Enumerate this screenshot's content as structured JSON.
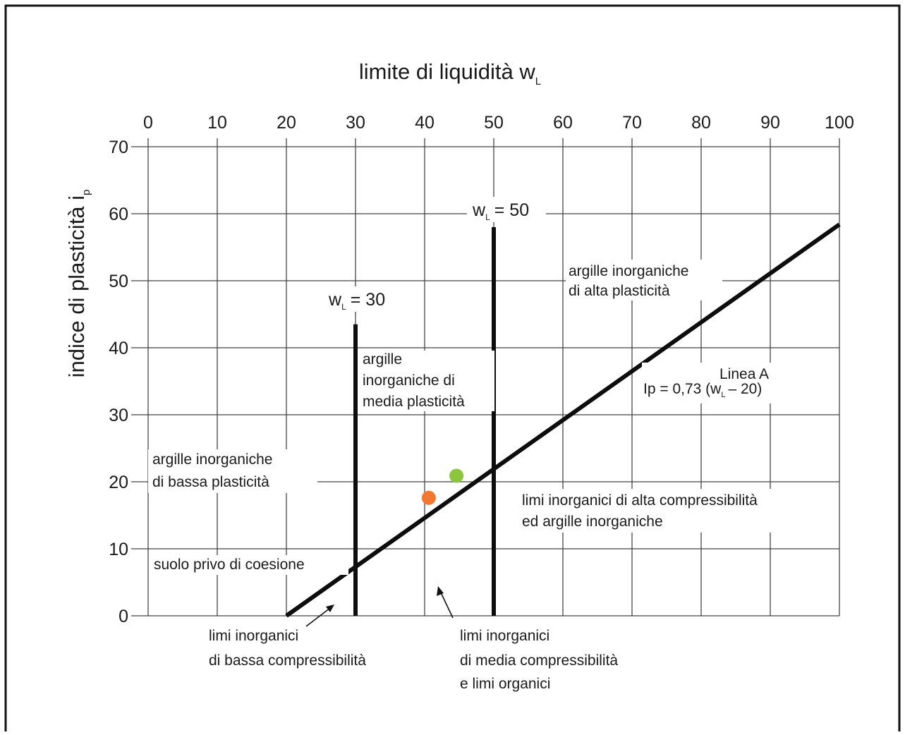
{
  "chart_data": {
    "type": "scatter",
    "title": "limite di liquidità w",
    "title_subscript": "L",
    "xlabel": "limite di liquidità w",
    "ylabel": "indice di plasticità i",
    "ylabel_subscript": "p",
    "xlim": [
      0,
      100
    ],
    "ylim": [
      0,
      70
    ],
    "x_ticks": [
      0,
      10,
      20,
      30,
      40,
      50,
      60,
      70,
      80,
      90,
      100
    ],
    "y_ticks": [
      0,
      10,
      20,
      30,
      40,
      50,
      60,
      70
    ],
    "grid": true,
    "x_axis_position": "top",
    "lines": [
      {
        "name": "Linea A",
        "x": [
          20,
          100
        ],
        "y": [
          0,
          58.4
        ]
      },
      {
        "name": "wL = 30",
        "x": [
          30,
          30
        ],
        "y": [
          0,
          43.5
        ]
      },
      {
        "name": "wL = 50",
        "x": [
          50,
          50
        ],
        "y": [
          0,
          58
        ]
      }
    ],
    "points": [
      {
        "x": 40.6,
        "y": 17.6,
        "color": "#f07830"
      },
      {
        "x": 44.6,
        "y": 20.9,
        "color": "#8cc63f"
      }
    ],
    "annotations": {
      "wl30_prefix": "w",
      "wl30_sub": "L",
      "wl30_suffix": "= 30",
      "wl50_prefix": "w",
      "wl50_sub": "L",
      "wl50_suffix": "= 50",
      "high_clay_1": "argille inorganiche",
      "high_clay_2": "di alta plasticità",
      "linea_a_label": "Linea A",
      "linea_a_eq_prefix": "Ip = 0,73 (w",
      "linea_a_eq_sub": "L",
      "linea_a_eq_suffix": "– 20)",
      "medium_clay_1": "argille",
      "medium_clay_2": "inorganiche di",
      "medium_clay_3": "media plasticità",
      "low_clay_1": "argille inorganiche",
      "low_clay_2": "di bassa plasticità",
      "high_silt_1": "limi inorganici di alta compressibilità",
      "high_silt_2": "ed argille inorganiche",
      "cohesionless": "suolo privo di coesione",
      "low_silt_1": "limi inorganici",
      "low_silt_2": "di bassa compressibilità",
      "medium_silt_1": "limi inorganici",
      "medium_silt_2": "di media compressibilità",
      "medium_silt_3": "e limi organici"
    }
  }
}
